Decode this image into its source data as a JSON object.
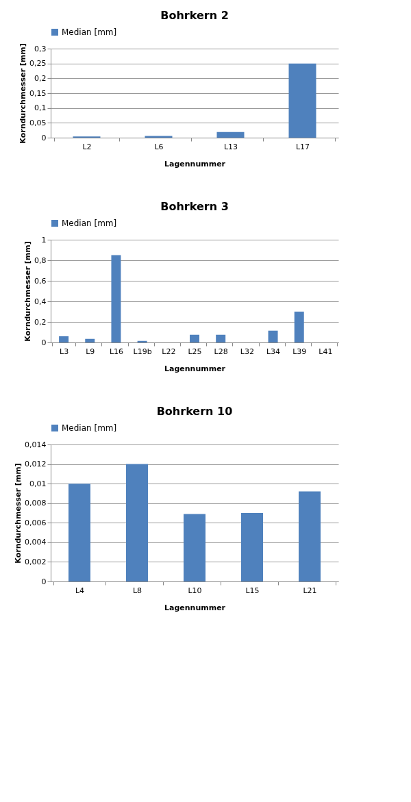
{
  "chart_data": [
    {
      "type": "bar",
      "title": "Bohrkern 2",
      "xlabel": "Lagennummer",
      "ylabel": "Korndurchmesser [mm]",
      "categories": [
        "L2",
        "L6",
        "L13",
        "L17"
      ],
      "series": [
        {
          "name": "Median [mm]",
          "color": "#4f81bd",
          "values": [
            0.004,
            0.006,
            0.019,
            0.25
          ]
        }
      ],
      "ylim": [
        0,
        0.3
      ],
      "yticks": [
        0,
        {
          "value": 0.05,
          "label": "0,05"
        },
        {
          "value": 0.1,
          "label": "0,1"
        },
        {
          "value": 0.15,
          "label": "0,15"
        },
        {
          "value": 0.2,
          "label": "0,2"
        },
        {
          "value": 0.25,
          "label": "0,25"
        },
        {
          "value": 0.3,
          "label": "0,3"
        }
      ],
      "grid": "y",
      "legend": "top"
    },
    {
      "type": "bar",
      "title": "Bohrkern 3",
      "xlabel": "Lagennummer",
      "ylabel": "Korndurchmesser [mm]",
      "categories": [
        "L3",
        "L9",
        "L16",
        "L19b",
        "L22",
        "L25",
        "L28",
        "L32",
        "L34",
        "L39",
        "L41"
      ],
      "series": [
        {
          "name": "Median [mm]",
          "color": "#4f81bd",
          "values": [
            0.06,
            0.035,
            0.85,
            0.015,
            0,
            0.075,
            0.075,
            0,
            0.115,
            0.3,
            0
          ]
        }
      ],
      "ylim": [
        0,
        1
      ],
      "yticks": [
        0,
        {
          "value": 0.2,
          "label": "0,2"
        },
        {
          "value": 0.4,
          "label": "0,4"
        },
        {
          "value": 0.6,
          "label": "0,6"
        },
        {
          "value": 0.8,
          "label": "0,8"
        },
        1
      ],
      "grid": "y",
      "legend": "top"
    },
    {
      "type": "bar",
      "title": "Bohrkern 10",
      "xlabel": "Lagennummer",
      "ylabel": "Korndurchmesser [mm]",
      "categories": [
        "L4",
        "L8",
        "L10",
        "L15",
        "L21"
      ],
      "series": [
        {
          "name": "Median [mm]",
          "color": "#4f81bd",
          "values": [
            0.01,
            0.012,
            0.0069,
            0.007,
            0.0092
          ]
        }
      ],
      "ylim": [
        0,
        0.014
      ],
      "yticks": [
        0,
        {
          "value": 0.002,
          "label": "0,002"
        },
        {
          "value": 0.004,
          "label": "0,004"
        },
        {
          "value": 0.006,
          "label": "0,006"
        },
        {
          "value": 0.008,
          "label": "0,008"
        },
        {
          "value": 0.01,
          "label": "0,01"
        },
        {
          "value": 0.012,
          "label": "0,012"
        },
        {
          "value": 0.014,
          "label": "0,014"
        }
      ],
      "grid": "y",
      "legend": "top"
    }
  ]
}
